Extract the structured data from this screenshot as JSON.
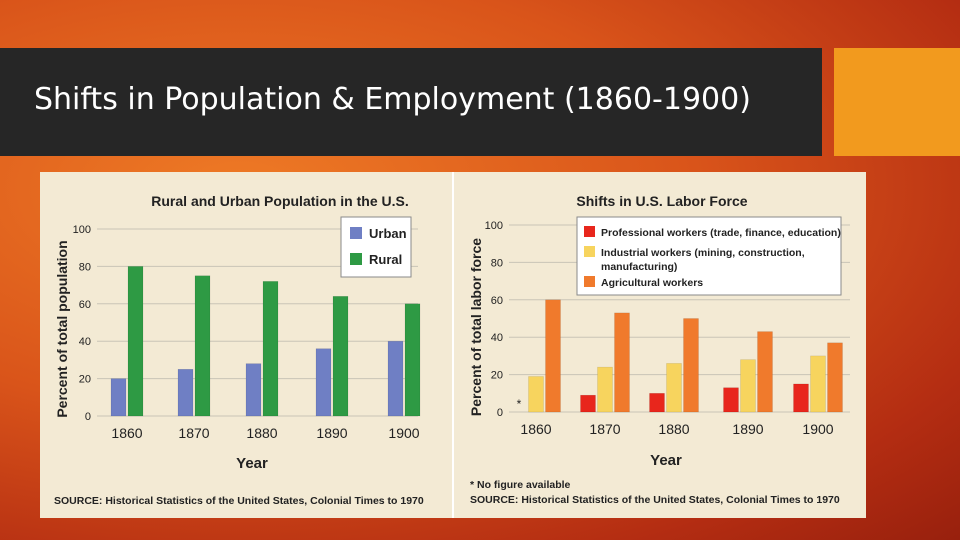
{
  "slide": {
    "title": "Shifts in Population & Employment (1860-1900)",
    "colors": {
      "title_bar": "#262626",
      "accent": "#f29a1e",
      "panel": "#f3ead4"
    }
  },
  "chart_data": [
    {
      "type": "bar",
      "title": "Rural and Urban Population in the U.S.",
      "xlabel": "Year",
      "ylabel": "Percent of total population",
      "ylim": [
        0,
        100
      ],
      "yticks": [
        0,
        20,
        40,
        60,
        80,
        100
      ],
      "grid": true,
      "legend": "top-right",
      "categories": [
        "1860",
        "1870",
        "1880",
        "1890",
        "1900"
      ],
      "series": [
        {
          "name": "Urban",
          "color": "#6f7fc4",
          "values": [
            20,
            25,
            28,
            36,
            40
          ]
        },
        {
          "name": "Rural",
          "color": "#2e9a44",
          "values": [
            80,
            75,
            72,
            64,
            60
          ]
        }
      ],
      "source": "SOURCE: Historical Statistics of the United States, Colonial Times to 1970"
    },
    {
      "type": "bar",
      "title": "Shifts in U.S. Labor Force",
      "xlabel": "Year",
      "ylabel": "Percent of total labor force",
      "ylim": [
        0,
        100
      ],
      "yticks": [
        0,
        20,
        40,
        60,
        80,
        100
      ],
      "grid": true,
      "legend": "top",
      "categories": [
        "1860",
        "1870",
        "1880",
        "1890",
        "1900"
      ],
      "series": [
        {
          "name": "Professional workers (trade, finance, education)",
          "color": "#e8261c",
          "values": [
            null,
            9,
            10,
            13,
            15
          ]
        },
        {
          "name": "Industrial workers (mining, construction, manufacturing)",
          "color": "#f7d45e",
          "values": [
            19,
            24,
            26,
            28,
            30
          ]
        },
        {
          "name": "Agricultural workers",
          "color": "#f07a2c",
          "values": [
            60,
            53,
            50,
            43,
            37
          ]
        }
      ],
      "missing_marker": "*",
      "footnote": "* No figure available",
      "source": "SOURCE: Historical Statistics of the United States, Colonial Times to 1970"
    }
  ]
}
